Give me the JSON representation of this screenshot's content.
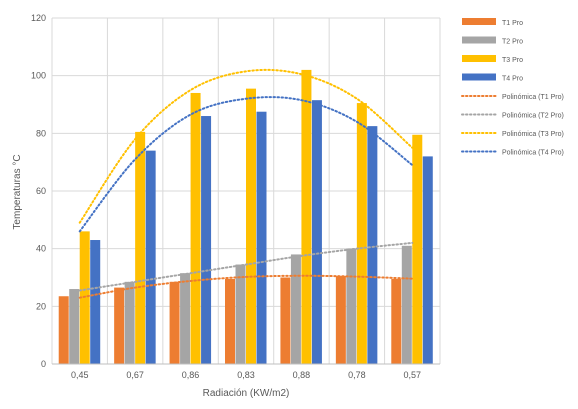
{
  "chart_data": {
    "type": "bar",
    "xlabel": "Radiación (KW/m2)",
    "ylabel": "Temperaturas °C",
    "ylim": [
      0,
      120
    ],
    "yticks": [
      0,
      20,
      40,
      60,
      80,
      100,
      120
    ],
    "grid": true,
    "legend_position": "right",
    "categories": [
      "0,45",
      "0,67",
      "0,86",
      "0,83",
      "0,88",
      "0,78",
      "0,57"
    ],
    "series": [
      {
        "name": "T1 Pro",
        "color": "#ED7D31",
        "values": [
          23.5,
          26.5,
          28.5,
          29.5,
          30,
          30.5,
          29.5
        ]
      },
      {
        "name": "T2 Pro",
        "color": "#A5A5A5",
        "values": [
          26,
          28.5,
          31.5,
          34.5,
          38,
          40,
          41
        ]
      },
      {
        "name": "T3 Pro",
        "color": "#FFC000",
        "values": [
          46,
          80.5,
          94,
          95.5,
          102,
          90.5,
          79.5
        ]
      },
      {
        "name": "T4 Pro",
        "color": "#4472C4",
        "values": [
          43,
          74,
          86,
          87.5,
          91.5,
          82.5,
          72
        ]
      }
    ],
    "trendlines": [
      {
        "name": "Polinómica (T1 Pro)",
        "color": "#ED7D31",
        "values": [
          23,
          26.5,
          28.8,
          30.2,
          30.6,
          30.3,
          29.6
        ]
      },
      {
        "name": "Polinómica (T2 Pro)",
        "color": "#A5A5A5",
        "values": [
          25.5,
          28.5,
          31.5,
          34.5,
          37.5,
          40,
          42
        ]
      },
      {
        "name": "Polinómica (T3 Pro)",
        "color": "#FFC000",
        "values": [
          49,
          78,
          95,
          101.5,
          100.5,
          92,
          75
        ]
      },
      {
        "name": "Polinómica (T4 Pro)",
        "color": "#4472C4",
        "values": [
          46,
          71,
          86.5,
          92,
          91.5,
          84,
          69
        ]
      }
    ]
  }
}
